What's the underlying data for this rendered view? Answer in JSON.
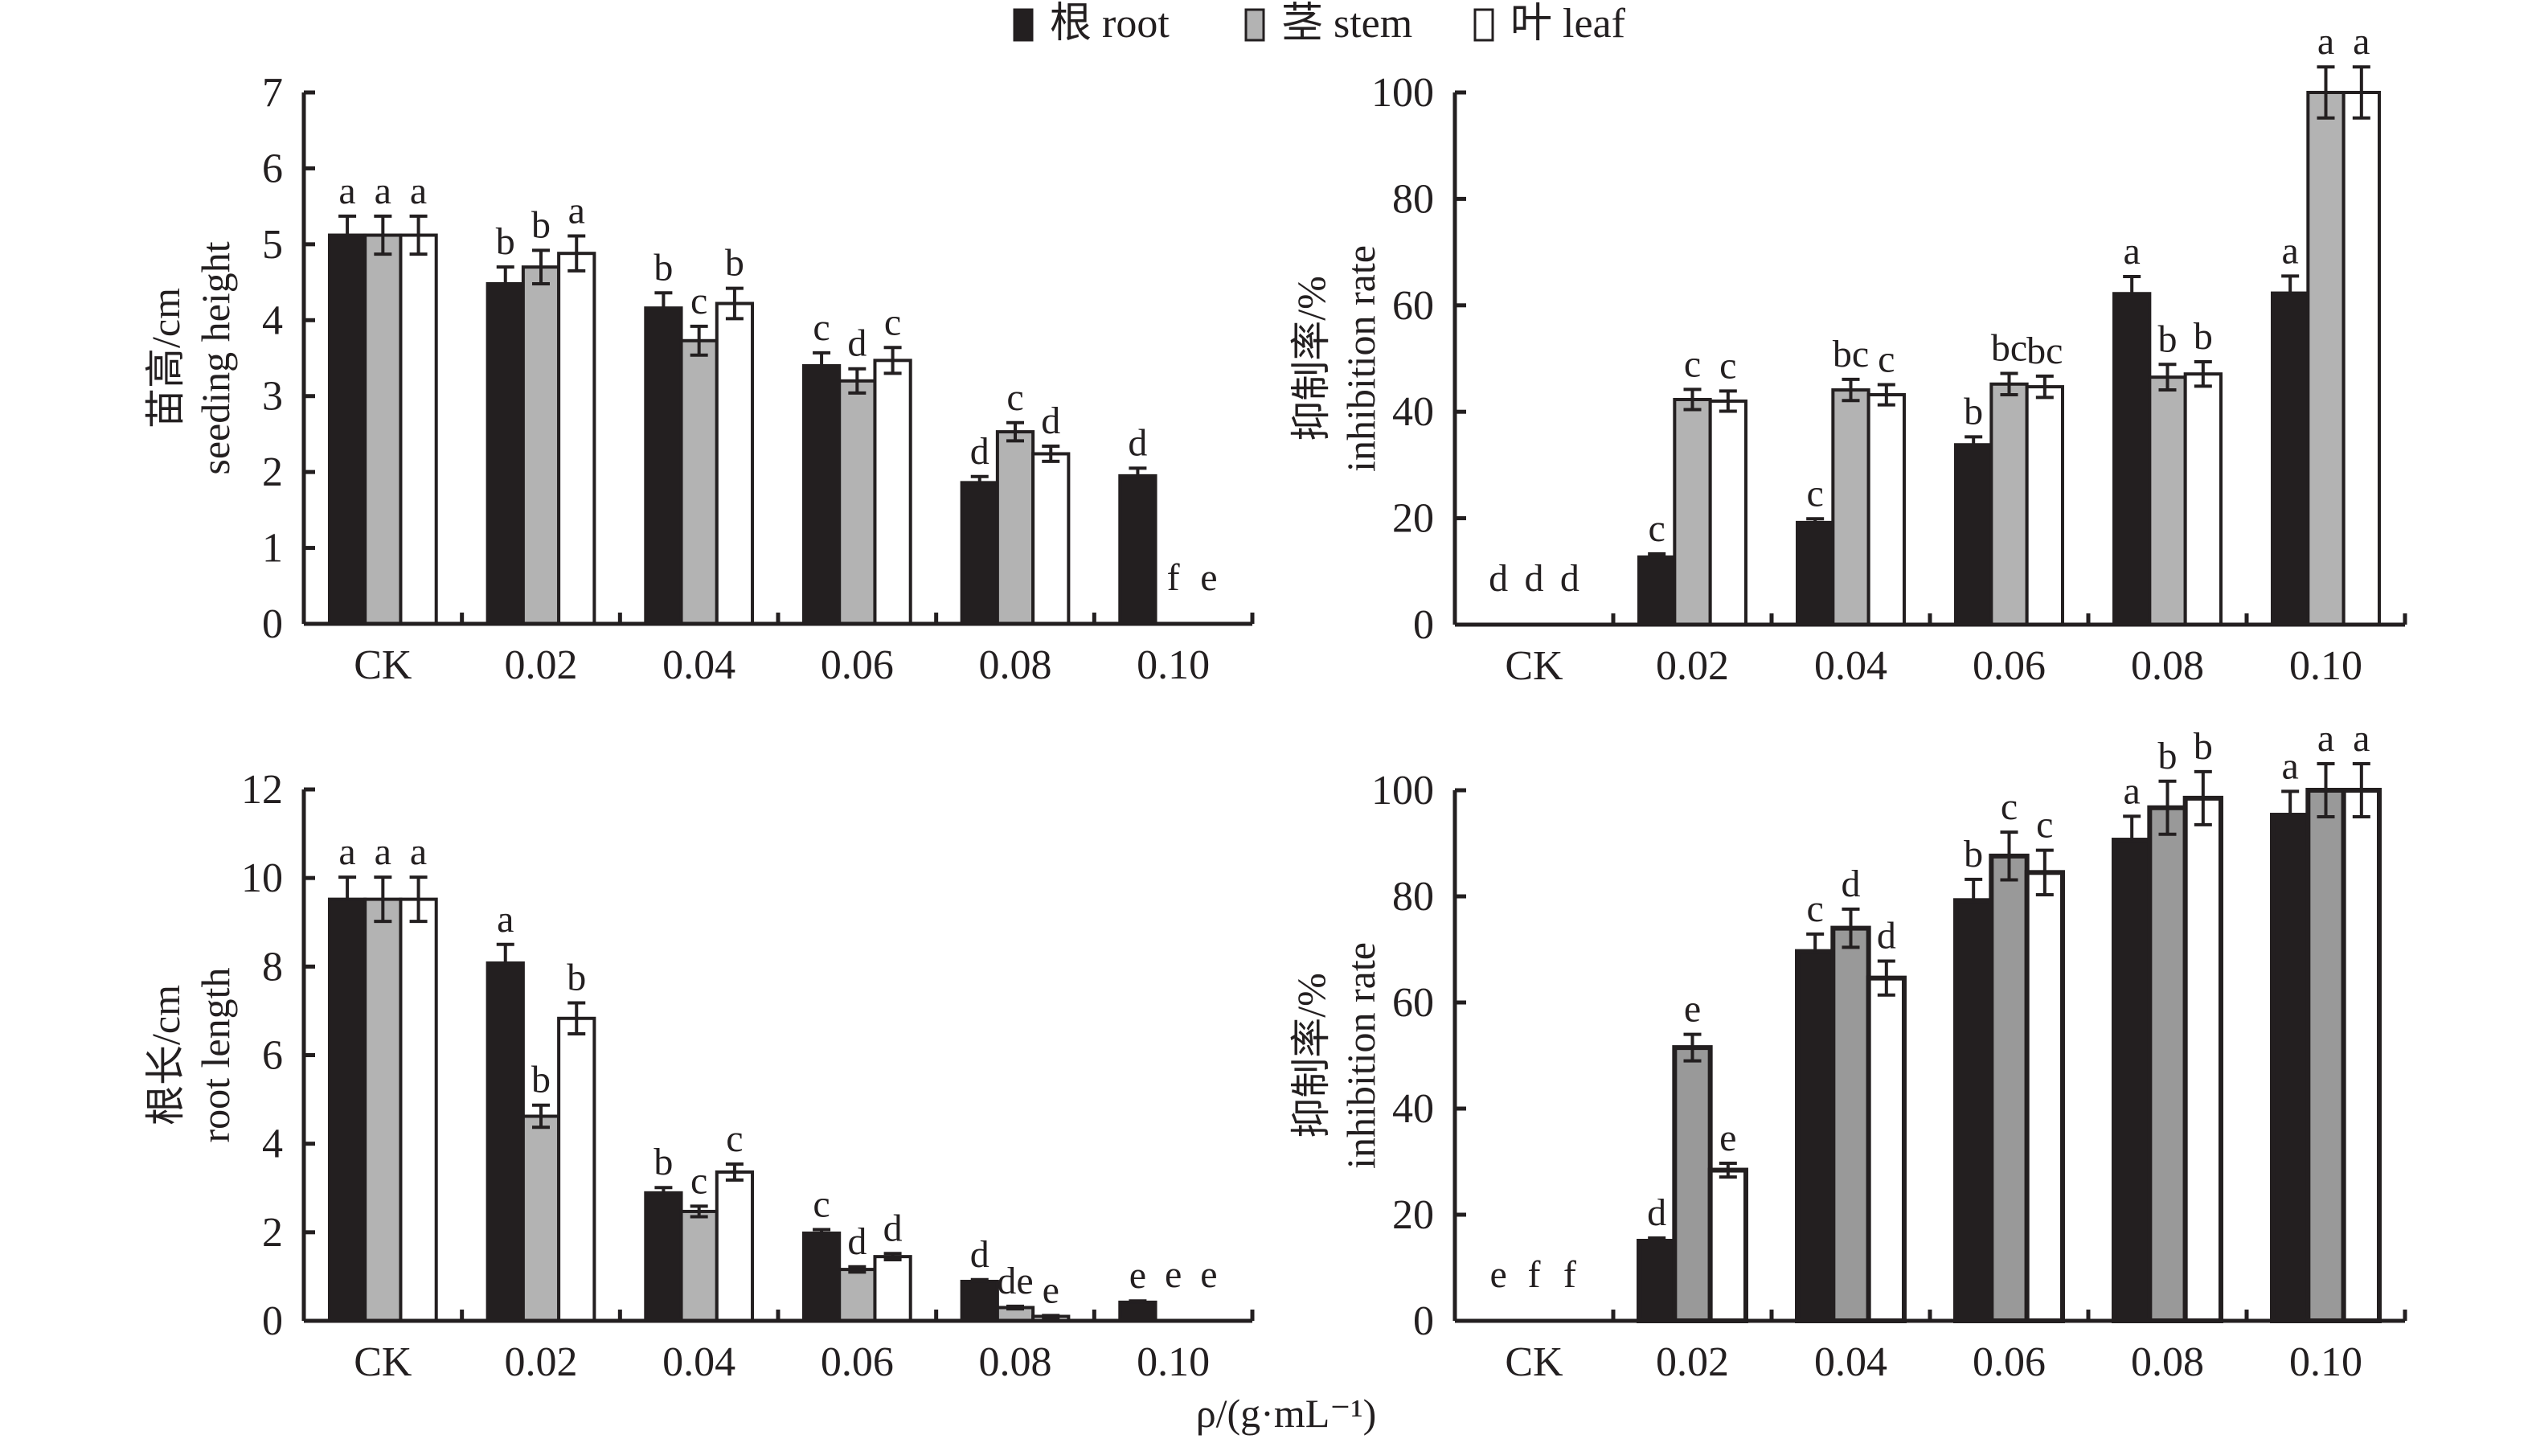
{
  "legend": {
    "items": [
      {
        "label": "根 root",
        "color": "#231f20"
      },
      {
        "label": "茎 stem",
        "color": "#b3b3b3"
      },
      {
        "label": "叶 leaf",
        "color": "#ffffff"
      }
    ]
  },
  "shared_xlabel": "ρ/(g·mL⁻¹)",
  "chart_data": [
    {
      "type": "bar",
      "panel": "top-left",
      "title": "",
      "ylabel_cn": "苗高/cm",
      "ylabel": "seeding height",
      "xlabel": "ρ/(g·mL⁻¹)",
      "categories": [
        "CK",
        "0.02",
        "0.04",
        "0.06",
        "0.08",
        "0.10"
      ],
      "ylim": [
        0,
        7
      ],
      "yticks": [
        0,
        1,
        2,
        3,
        4,
        5,
        6,
        7
      ],
      "stem_color": "#b3b3b3",
      "series": [
        {
          "name": "根 root",
          "values": [
            5.12,
            4.48,
            4.16,
            3.4,
            1.86,
            1.95
          ],
          "errors": [
            0.25,
            0.22,
            0.2,
            0.17,
            0.08,
            0.1
          ],
          "labels": [
            "a",
            "b",
            "b",
            "c",
            "d",
            "d"
          ]
        },
        {
          "name": "茎 stem",
          "values": [
            5.12,
            4.7,
            3.73,
            3.2,
            2.53,
            0
          ],
          "errors": [
            0.25,
            0.22,
            0.19,
            0.16,
            0.12,
            0
          ],
          "labels": [
            "a",
            "b",
            "c",
            "d",
            "c",
            "f"
          ]
        },
        {
          "name": "叶 leaf",
          "values": [
            5.12,
            4.88,
            4.22,
            3.47,
            2.24,
            0
          ],
          "errors": [
            0.25,
            0.23,
            0.2,
            0.17,
            0.1,
            0
          ],
          "labels": [
            "a",
            "a",
            "b",
            "c",
            "d",
            "e"
          ]
        }
      ]
    },
    {
      "type": "bar",
      "panel": "top-right",
      "title": "",
      "ylabel_cn": "抑制率/%",
      "ylabel": "inhibition rate",
      "xlabel": "ρ/(g·mL⁻¹)",
      "categories": [
        "CK",
        "0.02",
        "0.04",
        "0.06",
        "0.08",
        "0.10"
      ],
      "ylim": [
        0,
        100
      ],
      "yticks": [
        0,
        20,
        40,
        60,
        80,
        100
      ],
      "stem_color": "#b3b3b3",
      "series": [
        {
          "name": "根 root",
          "values": [
            0,
            12.7,
            19.2,
            33.8,
            62.2,
            62.3
          ],
          "errors": [
            0,
            0.6,
            0.7,
            1.5,
            3.2,
            3.2
          ],
          "labels": [
            "d",
            "c",
            "c",
            "b",
            "a",
            "a"
          ]
        },
        {
          "name": "茎 stem",
          "values": [
            0,
            42.3,
            44.1,
            45.2,
            46.5,
            100
          ],
          "errors": [
            0,
            1.9,
            2.0,
            2.0,
            2.4,
            4.8
          ],
          "labels": [
            "d",
            "c",
            "bc",
            "bc",
            "b",
            "a"
          ]
        },
        {
          "name": "叶 leaf",
          "values": [
            0,
            42.0,
            43.2,
            44.7,
            47.1,
            100
          ],
          "errors": [
            0,
            1.9,
            1.9,
            2.0,
            2.3,
            4.8
          ],
          "labels": [
            "d",
            "c",
            "c",
            "bc",
            "b",
            "a"
          ]
        }
      ]
    },
    {
      "type": "bar",
      "panel": "bottom-left",
      "title": "",
      "ylabel_cn": "根长/cm",
      "ylabel": "root length",
      "xlabel": "ρ/(g·mL⁻¹)",
      "categories": [
        "CK",
        "0.02",
        "0.04",
        "0.06",
        "0.08",
        "0.10"
      ],
      "ylim": [
        0,
        12
      ],
      "yticks": [
        0,
        2,
        4,
        6,
        8,
        10,
        12
      ],
      "stem_color": "#b3b3b3",
      "series": [
        {
          "name": "根 root",
          "values": [
            9.52,
            8.08,
            2.89,
            1.98,
            0.89,
            0.42
          ],
          "errors": [
            0.5,
            0.42,
            0.12,
            0.08,
            0.04,
            0.03
          ],
          "labels": [
            "a",
            "a",
            "b",
            "c",
            "d",
            "e"
          ]
        },
        {
          "name": "茎 stem",
          "values": [
            9.52,
            4.62,
            2.47,
            1.16,
            0.3,
            0
          ],
          "errors": [
            0.5,
            0.25,
            0.12,
            0.06,
            0.03,
            0
          ],
          "labels": [
            "a",
            "b",
            "c",
            "d",
            "de",
            "e"
          ]
        },
        {
          "name": "叶 leaf",
          "values": [
            9.52,
            6.83,
            3.36,
            1.45,
            0.1,
            0
          ],
          "errors": [
            0.5,
            0.35,
            0.18,
            0.07,
            0.02,
            0
          ],
          "labels": [
            "a",
            "b",
            "c",
            "d",
            "e",
            "e"
          ]
        }
      ]
    },
    {
      "type": "bar",
      "panel": "bottom-right",
      "title": "",
      "ylabel_cn": "抑制率/%",
      "ylabel": "inhibition rate",
      "xlabel": "ρ/(g·mL⁻¹)",
      "categories": [
        "CK",
        "0.02",
        "0.04",
        "0.06",
        "0.08",
        "0.10"
      ],
      "ylim": [
        0,
        100
      ],
      "yticks": [
        0,
        20,
        40,
        60,
        80,
        100
      ],
      "stem_color": "#999999",
      "series": [
        {
          "name": "根 root",
          "values": [
            0,
            15.0,
            69.6,
            79.2,
            90.6,
            95.3
          ],
          "errors": [
            0,
            0.6,
            3.3,
            4.0,
            4.5,
            4.5
          ],
          "labels": [
            "e",
            "d",
            "c",
            "b",
            "a",
            "a"
          ]
        },
        {
          "name": "茎 stem",
          "values": [
            0,
            51.5,
            74.0,
            87.6,
            96.7,
            100
          ],
          "errors": [
            0,
            2.5,
            3.6,
            4.5,
            5.0,
            5.0
          ],
          "labels": [
            "f",
            "e",
            "d",
            "c",
            "b",
            "a"
          ]
        },
        {
          "name": "叶 leaf",
          "values": [
            0,
            28.4,
            64.6,
            84.5,
            98.5,
            100
          ],
          "errors": [
            0,
            1.3,
            3.2,
            4.2,
            5.0,
            5.0
          ],
          "labels": [
            "f",
            "e",
            "d",
            "c",
            "b",
            "a"
          ]
        }
      ]
    }
  ]
}
